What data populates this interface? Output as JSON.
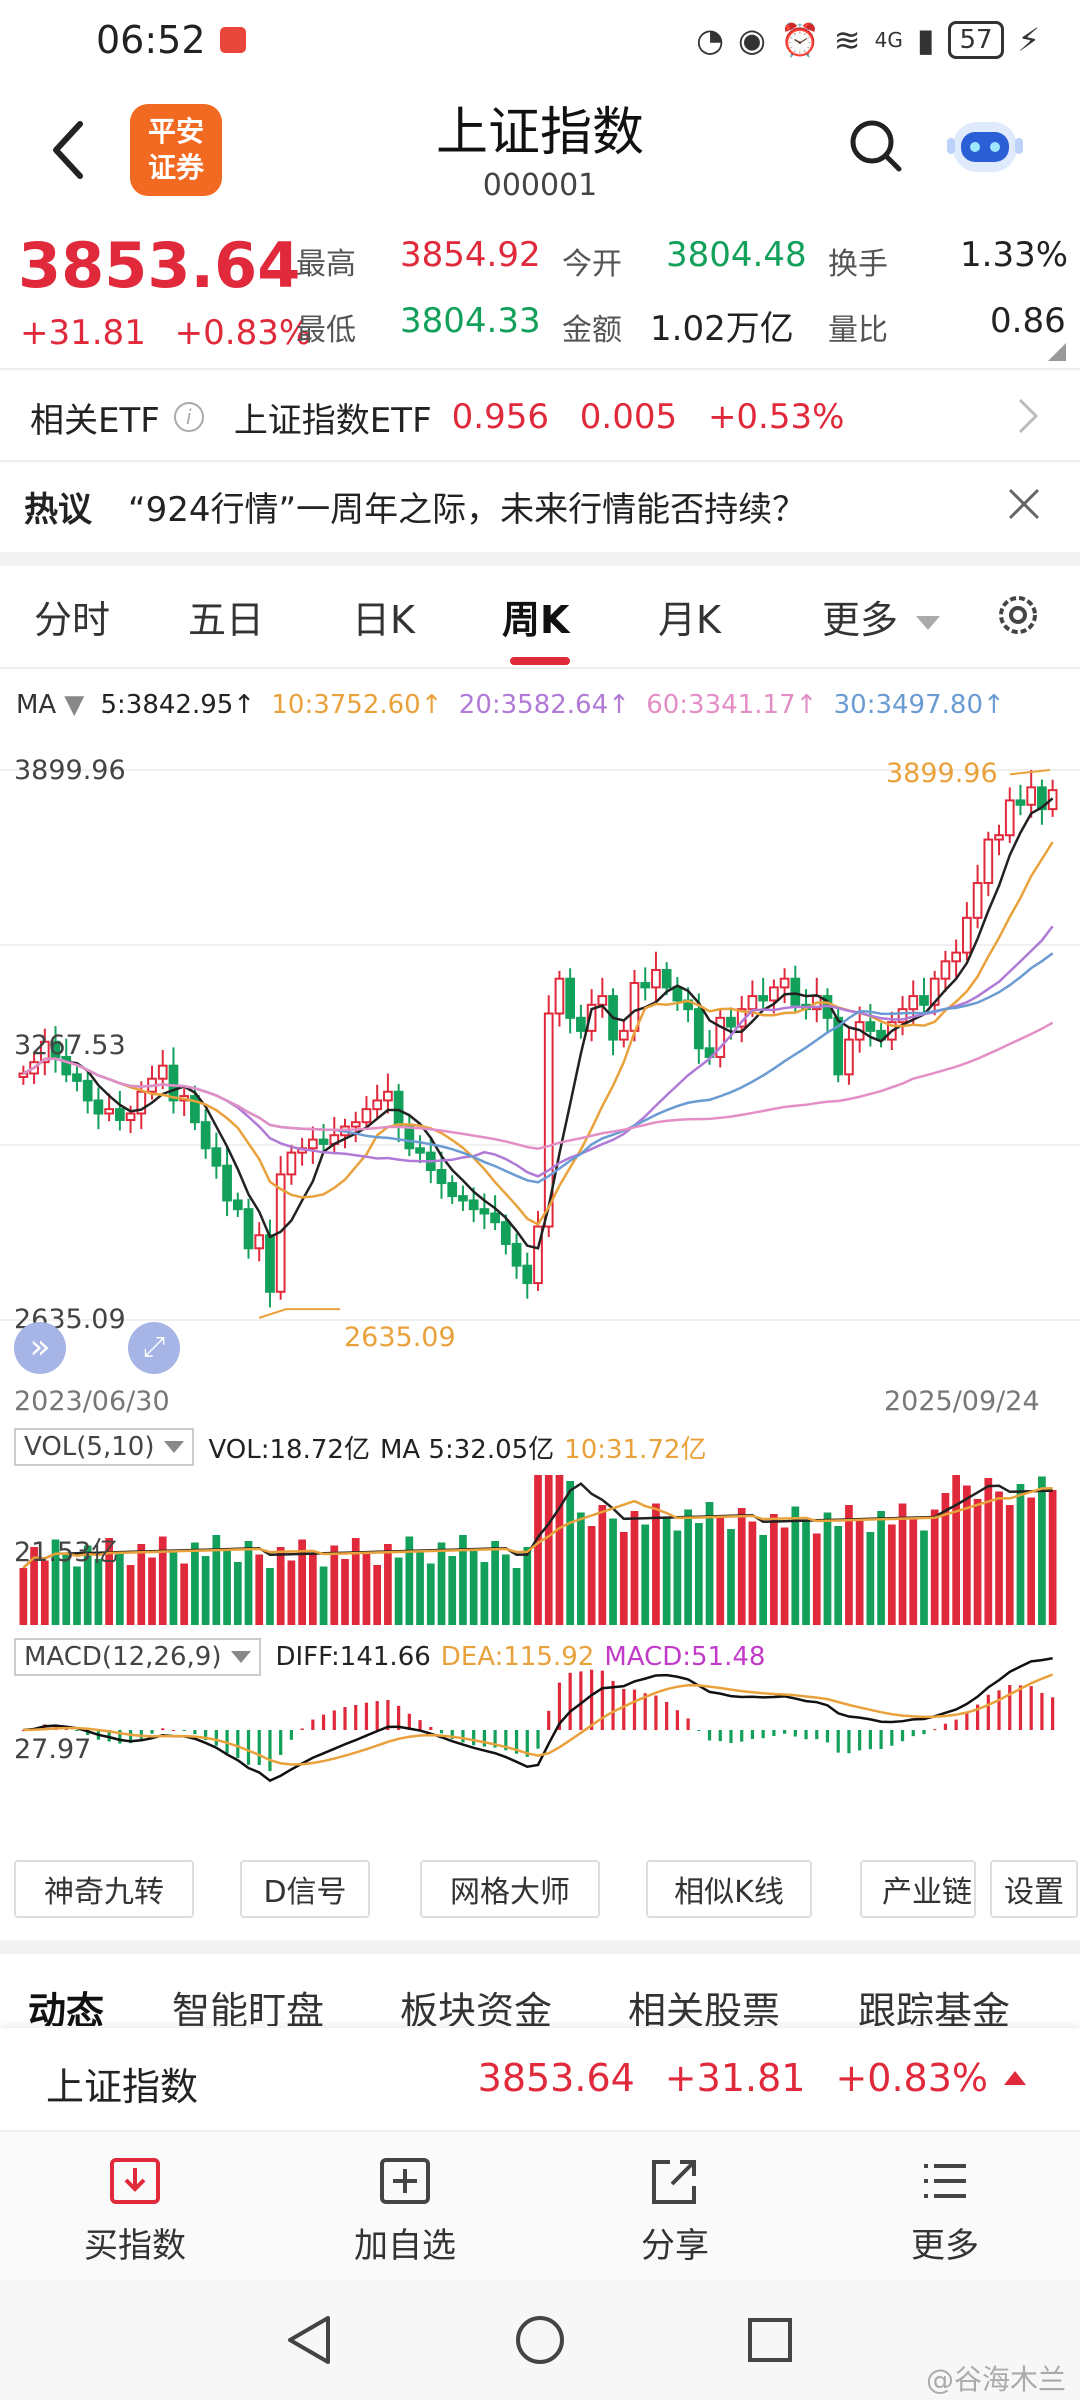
{
  "status_bar": {
    "time": "06:52",
    "battery": "57",
    "network": "4G"
  },
  "header": {
    "logo_text": "平安\n证券",
    "title": "上证指数",
    "code": "000001"
  },
  "quote": {
    "price": "3853.64",
    "change": "+31.81",
    "change_pct": "+0.83%",
    "high_label": "最高",
    "high": "3854.92",
    "open_label": "今开",
    "open": "3804.48",
    "turnover_label": "换手",
    "turnover": "1.33%",
    "low_label": "最低",
    "low": "3804.33",
    "amount_label": "金额",
    "amount": "1.02万亿",
    "vol_ratio_label": "量比",
    "vol_ratio": "0.86"
  },
  "etf": {
    "label": "相关ETF",
    "name": "上证指数ETF",
    "price": "0.956",
    "change": "0.005",
    "change_pct": "+0.53%"
  },
  "hot": {
    "label": "热议",
    "text": "“924行情”一周年之际，未来行情能否持续？"
  },
  "tabs": [
    {
      "label": "分时"
    },
    {
      "label": "五日"
    },
    {
      "label": "日K"
    },
    {
      "label": "周K",
      "active": true
    },
    {
      "label": "月K"
    },
    {
      "label": "更多"
    }
  ],
  "ma_legend": {
    "label": "MA",
    "ma5": "5:3842.95↑",
    "ma10": "10:3752.60↑",
    "ma20": "20:3582.64↑",
    "ma60": "60:3341.17↑",
    "ma30": "30:3497.80↑"
  },
  "colors": {
    "up": "#e0293b",
    "down": "#12a05a",
    "ma5": "#222222",
    "ma10": "#e9a23b",
    "ma20": "#b07ad6",
    "ma30": "#6a9bd2",
    "ma60": "#e38fc6"
  },
  "chart_data": {
    "type": "candlestick",
    "period": "weekly",
    "start_date": "2023/06/30",
    "end_date": "2025/09/24",
    "y_ticks": [
      "3899.96",
      "3267.53",
      "2635.09"
    ],
    "ylim": [
      2635.09,
      3899.96
    ],
    "max_label": "3899.96",
    "min_label": "2635.09",
    "close_approx": [
      3202,
      3228,
      3275,
      3240,
      3200,
      3185,
      3140,
      3110,
      3120,
      3095,
      3110,
      3160,
      3190,
      3220,
      3140,
      3150,
      3090,
      3030,
      2990,
      2910,
      2890,
      2800,
      2830,
      2700,
      2970,
      3020,
      3030,
      3050,
      3040,
      3060,
      3080,
      3090,
      3120,
      3140,
      3160,
      3080,
      3030,
      3020,
      2980,
      2950,
      2920,
      2910,
      2890,
      2880,
      2860,
      2810,
      2760,
      2720,
      2850,
      3340,
      3420,
      3330,
      3300,
      3360,
      3380,
      3280,
      3300,
      3410,
      3400,
      3440,
      3400,
      3370,
      3350,
      3260,
      3240,
      3330,
      3310,
      3350,
      3380,
      3370,
      3400,
      3420,
      3360,
      3350,
      3380,
      3330,
      3200,
      3280,
      3320,
      3300,
      3280,
      3320,
      3350,
      3380,
      3360,
      3420,
      3460,
      3480,
      3560,
      3640,
      3740,
      3750,
      3830,
      3820,
      3860,
      3810,
      3853.64
    ]
  },
  "volume_legend": {
    "label": "VOL(5,10)",
    "vol": "VOL:18.72亿",
    "ma5": "MA 5:32.05亿",
    "ma10": "10:31.72亿",
    "tick": "21.53亿"
  },
  "macd_legend": {
    "label": "MACD(12,26,9)",
    "diff": "DIFF:141.66",
    "dea": "DEA:115.92",
    "macd": "MACD:51.48",
    "tick": "27.97"
  },
  "tools": [
    "神奇九转",
    "D信号",
    "网格大师",
    "相似K线",
    "产业链",
    "设置"
  ],
  "sections": [
    "动态",
    "智能盯盘",
    "板块资金",
    "相关股票",
    "跟踪基金"
  ],
  "summary": {
    "name": "上证指数",
    "price": "3853.64",
    "change": "+31.81",
    "change_pct": "+0.83%"
  },
  "actions": [
    {
      "label": "买指数",
      "icon": "download-box-icon"
    },
    {
      "label": "加自选",
      "icon": "plus-box-icon"
    },
    {
      "label": "分享",
      "icon": "share-icon"
    },
    {
      "label": "更多",
      "icon": "menu-lines-icon"
    }
  ],
  "watermark": "@谷海木兰"
}
